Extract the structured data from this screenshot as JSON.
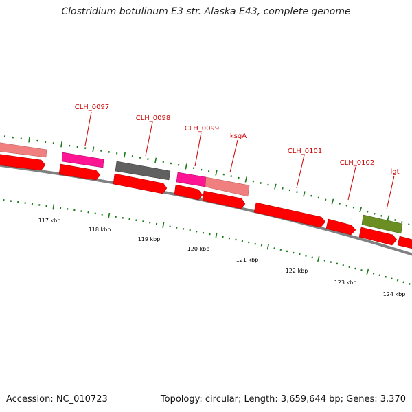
{
  "title": "Clostridium botulinum E3 str. Alaska E43, complete genome",
  "footer": {
    "accession": "Accession: NC_010723",
    "stats": "Topology: circular; Length: 3,659,644 bp; Genes: 3,370"
  },
  "colors": {
    "backbone": "#808080",
    "cds_red": "#ff0000",
    "cds_pink": "#ff1493",
    "cds_salmon": "#f08080",
    "cds_gray": "#606060",
    "cds_olive": "#6b8e23",
    "tick_green": "#1a7a1a",
    "label_red": "#cc0000"
  },
  "gene_labels": [
    {
      "id": "clh0097",
      "text": "CLH_0097"
    },
    {
      "id": "clh0098",
      "text": "CLH_0098"
    },
    {
      "id": "clh0099",
      "text": "CLH_0099"
    },
    {
      "id": "ksga",
      "text": "ksgA"
    },
    {
      "id": "clh0101",
      "text": "CLH_0101"
    },
    {
      "id": "clh0102",
      "text": "CLH_0102"
    },
    {
      "id": "lgt",
      "text": "lgt"
    }
  ],
  "axis_labels": [
    {
      "id": "k117",
      "text": "117 kbp"
    },
    {
      "id": "k118",
      "text": "118 kbp"
    },
    {
      "id": "k119",
      "text": "119 kbp"
    },
    {
      "id": "k120",
      "text": "120 kbp"
    },
    {
      "id": "k121",
      "text": "121 kbp"
    },
    {
      "id": "k122",
      "text": "122 kbp"
    },
    {
      "id": "k123",
      "text": "123 kbp"
    },
    {
      "id": "k124",
      "text": "124 kbp"
    }
  ]
}
